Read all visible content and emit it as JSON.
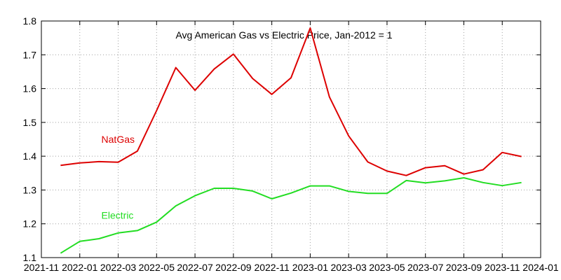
{
  "chart_data": {
    "type": "line",
    "title": "Avg American Gas vs Electric Price, Jan-2012 = 1",
    "xlabel": "",
    "ylabel": "",
    "xlim": [
      "2021-11",
      "2024-01"
    ],
    "ylim": [
      1.1,
      1.8
    ],
    "x_ticks": [
      "2021-11",
      "2022-01",
      "2022-03",
      "2022-05",
      "2022-07",
      "2022-09",
      "2022-11",
      "2023-01",
      "2023-03",
      "2023-05",
      "2023-07",
      "2023-09",
      "2023-11",
      "2024-01"
    ],
    "y_ticks": [
      "1.1",
      "1.2",
      "1.3",
      "1.4",
      "1.5",
      "1.6",
      "1.7",
      "1.8"
    ],
    "grid": true,
    "x": [
      "2021-12",
      "2022-01",
      "2022-02",
      "2022-03",
      "2022-04",
      "2022-05",
      "2022-06",
      "2022-07",
      "2022-08",
      "2022-09",
      "2022-10",
      "2022-11",
      "2022-12",
      "2023-01",
      "2023-02",
      "2023-03",
      "2023-04",
      "2023-05",
      "2023-06",
      "2023-07",
      "2023-08",
      "2023-09",
      "2023-10",
      "2023-11",
      "2023-12"
    ],
    "series": [
      {
        "name": "NatGas",
        "color": "#dd0000",
        "label_at": [
          "2022-03",
          1.45
        ],
        "values": [
          1.373,
          1.38,
          1.384,
          1.382,
          1.415,
          1.535,
          1.662,
          1.595,
          1.658,
          1.702,
          1.63,
          1.583,
          1.632,
          1.779,
          1.575,
          1.46,
          1.383,
          1.356,
          1.343,
          1.366,
          1.372,
          1.347,
          1.36,
          1.411,
          1.399
        ]
      },
      {
        "name": "Electric",
        "color": "#22dd22",
        "label_at": [
          "2022-03",
          1.225
        ],
        "values": [
          1.113,
          1.148,
          1.156,
          1.173,
          1.18,
          1.205,
          1.253,
          1.283,
          1.305,
          1.305,
          1.297,
          1.274,
          1.291,
          1.312,
          1.312,
          1.296,
          1.29,
          1.29,
          1.328,
          1.321,
          1.327,
          1.336,
          1.322,
          1.313,
          1.322
        ]
      }
    ]
  }
}
